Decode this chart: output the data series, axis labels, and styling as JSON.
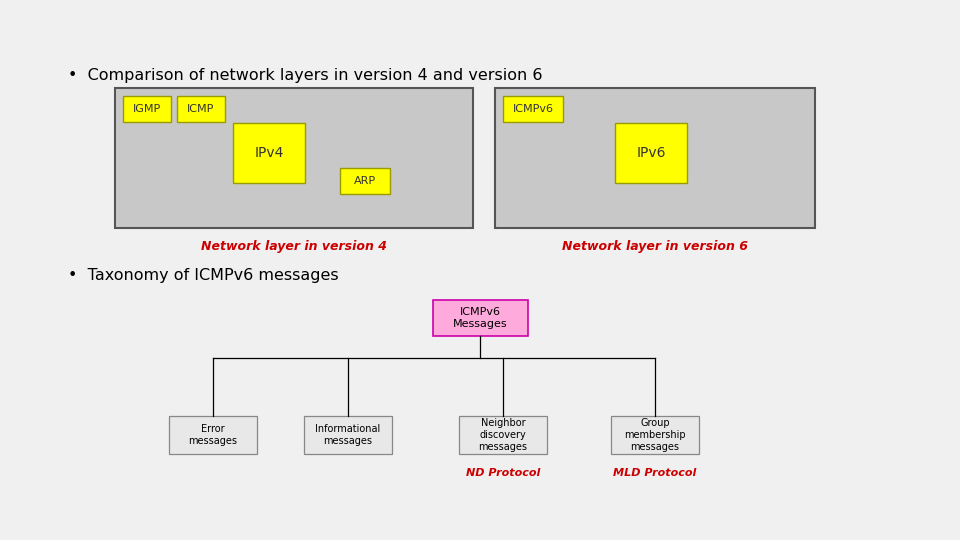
{
  "title": "ICMPv6",
  "bullet1": "Comparison of network layers in version 4 and version 6",
  "bullet2": "Taxonomy of ICMPv6 messages",
  "bg_color": "#f0f0f0",
  "panel_bg": "#c8c8c8",
  "yellow": "#ffff00",
  "red_label": "#cc0000",
  "dark_border": "#555555",
  "label_color": "#333333",
  "v4_label": "Network layer in version 4",
  "v6_label": "Network layer in version 6",
  "tax_center": "ICMPv6\nMessages",
  "tax_children": [
    "Error\nmessages",
    "Informational\nmessages",
    "Neighbor\ndiscovery\nmessages",
    "Group\nmembership\nmessages"
  ],
  "nd_label": "ND Protocol",
  "mld_label": "MLD Protocol",
  "root_box_color": "#ffaadd",
  "root_box_border": "#cc00aa",
  "child_box_color": "#e8e8e8",
  "child_box_border": "#888888",
  "yellow_border": "#999900"
}
